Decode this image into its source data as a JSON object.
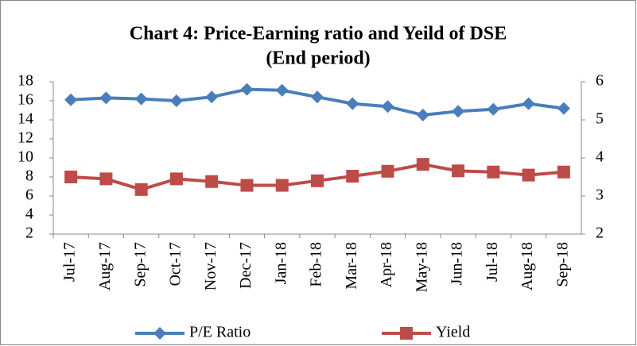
{
  "chart_data": {
    "type": "line",
    "title": "Chart 4: Price-Earning ratio and Yeild of DSE",
    "subtitle": "(End  period)",
    "categories": [
      "Jul-17",
      "Aug-17",
      "Sep-17",
      "Oct-17",
      "Nov-17",
      "Dec-17",
      "Jan-18",
      "Feb-18",
      "Mar-18",
      "Apr-18",
      "May-18",
      "Jun-18",
      "Jul-18",
      "Aug-18",
      "Sep-18"
    ],
    "series": [
      {
        "name": "P/E Ratio",
        "color": "#4a7ebb",
        "marker": "diamond",
        "values": [
          16.1,
          16.3,
          16.2,
          16.0,
          16.4,
          17.2,
          17.1,
          16.4,
          15.7,
          15.4,
          14.5,
          14.9,
          15.1,
          15.7,
          15.2
        ]
      },
      {
        "name": "Yield",
        "color": "#be4b48",
        "marker": "square",
        "axis": "y2",
        "values": [
          3.5,
          3.45,
          3.17,
          3.45,
          3.38,
          3.28,
          3.28,
          3.4,
          3.52,
          3.65,
          3.83,
          3.66,
          3.63,
          3.55,
          3.63
        ]
      }
    ],
    "ylim": [
      2,
      18
    ],
    "yticks": [
      2,
      4,
      6,
      8,
      10,
      12,
      14,
      16,
      18
    ],
    "y2lim": [
      2,
      6
    ],
    "y2ticks": [
      2,
      3,
      4,
      5,
      6
    ],
    "grid": false,
    "legend": "bottom"
  }
}
